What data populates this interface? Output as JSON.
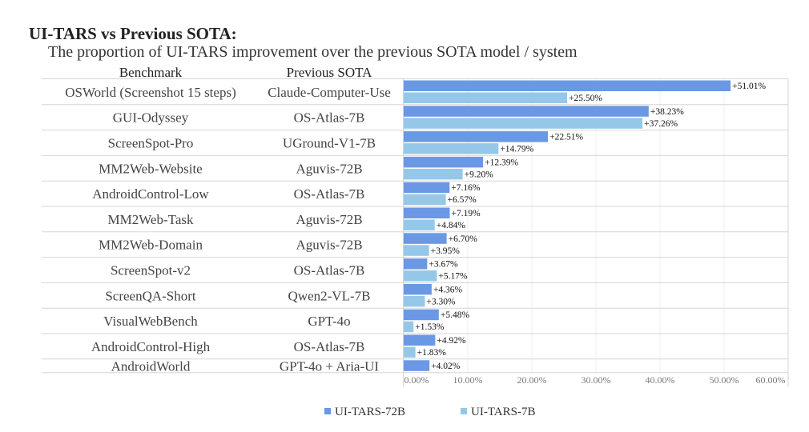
{
  "chart_data": {
    "type": "bar",
    "orientation": "horizontal",
    "title": "UI-TARS vs Previous SOTA:",
    "subtitle": "The proportion of UI-TARS improvement over the previous SOTA model / system",
    "table_headers": [
      "Benchmark",
      "Previous SOTA"
    ],
    "categories": [
      "OSWorld (Screenshot 15 steps)",
      "GUI-Odyssey",
      "ScreenSpot-Pro",
      "MM2Web-Website",
      "AndroidControl-Low",
      "MM2Web-Task",
      "MM2Web-Domain",
      "ScreenSpot-v2",
      "ScreenQA-Short",
      "VisualWebBench",
      "AndroidControl-High",
      "AndroidWorld"
    ],
    "previous_sota": [
      "Claude-Computer-Use",
      "OS-Atlas-7B",
      "UGround-V1-7B",
      "Aguvis-72B",
      "OS-Atlas-7B",
      "Aguvis-72B",
      "Aguvis-72B",
      "OS-Atlas-7B",
      "Qwen2-VL-7B",
      "GPT-4o",
      "OS-Atlas-7B",
      "GPT-4o + Aria-UI"
    ],
    "series": [
      {
        "name": "UI-TARS-72B",
        "color": "#6a98e4",
        "values": [
          51.01,
          38.23,
          22.51,
          12.39,
          7.16,
          7.19,
          6.7,
          3.67,
          4.36,
          5.48,
          4.92,
          4.02
        ],
        "labels": [
          "+51.01%",
          "+38.23%",
          "+22.51%",
          "+12.39%",
          "+7.16%",
          "+7.19%",
          "+6.70%",
          "+3.67%",
          "+4.36%",
          "+5.48%",
          "+4.92%",
          "+4.02%"
        ]
      },
      {
        "name": "UI-TARS-7B",
        "color": "#95c8e8",
        "values": [
          25.5,
          37.26,
          14.79,
          9.2,
          6.57,
          4.84,
          3.95,
          5.17,
          3.3,
          1.53,
          1.83,
          null
        ],
        "labels": [
          "+25.50%",
          "+37.26%",
          "+14.79%",
          "+9.20%",
          "+6.57%",
          "+4.84%",
          "+3.95%",
          "+5.17%",
          "+3.30%",
          "+1.53%",
          "+1.83%",
          null
        ]
      }
    ],
    "xlim": [
      0,
      60
    ],
    "xticks": [
      "0.00%",
      "10.00%",
      "20.00%",
      "30.00%",
      "40.00%",
      "50.00%",
      "60.00%"
    ],
    "grid": true,
    "legend": "bottom"
  }
}
